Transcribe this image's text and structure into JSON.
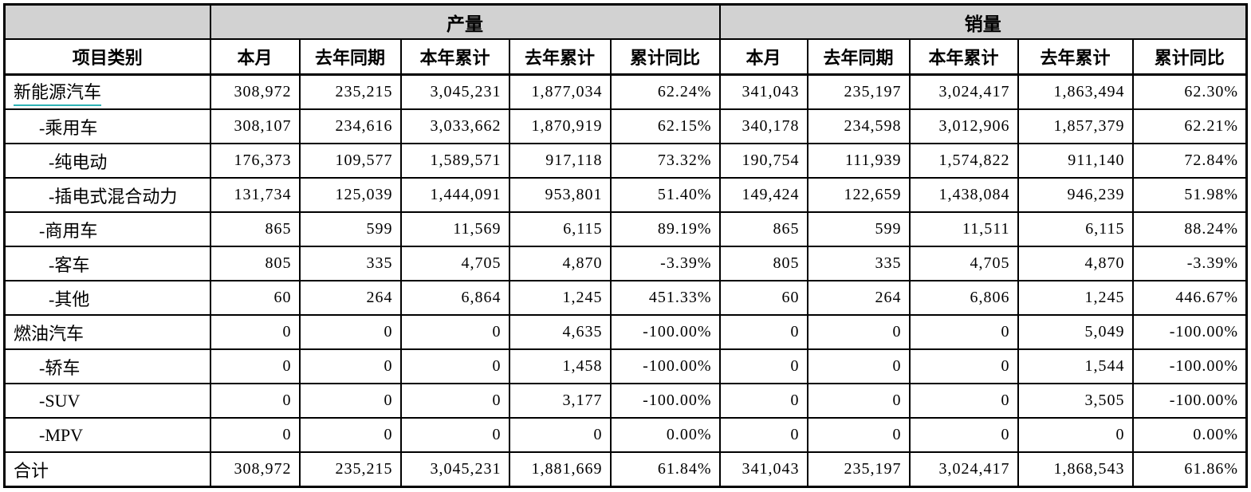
{
  "colors": {
    "header_bg": "#d2d2d2",
    "border": "#000000",
    "link_underline": "#2fb3b6",
    "text": "#000000"
  },
  "header": {
    "category_label": "项目类别",
    "groups": [
      {
        "label": "产量"
      },
      {
        "label": "销量"
      }
    ],
    "sub_columns": [
      "本月",
      "去年同期",
      "本年累计",
      "去年累计",
      "累计同比"
    ]
  },
  "rows": [
    {
      "label": "新能源汽车",
      "indent": 0,
      "link": true,
      "production": [
        "308,972",
        "235,215",
        "3,045,231",
        "1,877,034",
        "62.24%"
      ],
      "sales": [
        "341,043",
        "235,197",
        "3,024,417",
        "1,863,494",
        "62.30%"
      ]
    },
    {
      "label": "-乘用车",
      "indent": 1,
      "link": false,
      "production": [
        "308,107",
        "234,616",
        "3,033,662",
        "1,870,919",
        "62.15%"
      ],
      "sales": [
        "340,178",
        "234,598",
        "3,012,906",
        "1,857,379",
        "62.21%"
      ]
    },
    {
      "label": "-纯电动",
      "indent": 2,
      "link": false,
      "production": [
        "176,373",
        "109,577",
        "1,589,571",
        "917,118",
        "73.32%"
      ],
      "sales": [
        "190,754",
        "111,939",
        "1,574,822",
        "911,140",
        "72.84%"
      ]
    },
    {
      "label": "-插电式混合动力",
      "indent": 2,
      "link": false,
      "production": [
        "131,734",
        "125,039",
        "1,444,091",
        "953,801",
        "51.40%"
      ],
      "sales": [
        "149,424",
        "122,659",
        "1,438,084",
        "946,239",
        "51.98%"
      ]
    },
    {
      "label": "-商用车",
      "indent": 1,
      "link": false,
      "production": [
        "865",
        "599",
        "11,569",
        "6,115",
        "89.19%"
      ],
      "sales": [
        "865",
        "599",
        "11,511",
        "6,115",
        "88.24%"
      ]
    },
    {
      "label": "-客车",
      "indent": 2,
      "link": false,
      "production": [
        "805",
        "335",
        "4,705",
        "4,870",
        "-3.39%"
      ],
      "sales": [
        "805",
        "335",
        "4,705",
        "4,870",
        "-3.39%"
      ]
    },
    {
      "label": "-其他",
      "indent": 2,
      "link": false,
      "production": [
        "60",
        "264",
        "6,864",
        "1,245",
        "451.33%"
      ],
      "sales": [
        "60",
        "264",
        "6,806",
        "1,245",
        "446.67%"
      ]
    },
    {
      "label": "燃油汽车",
      "indent": 0,
      "link": false,
      "production": [
        "0",
        "0",
        "0",
        "4,635",
        "-100.00%"
      ],
      "sales": [
        "0",
        "0",
        "0",
        "5,049",
        "-100.00%"
      ]
    },
    {
      "label": "-轿车",
      "indent": 1,
      "link": false,
      "production": [
        "0",
        "0",
        "0",
        "1,458",
        "-100.00%"
      ],
      "sales": [
        "0",
        "0",
        "0",
        "1,544",
        "-100.00%"
      ]
    },
    {
      "label": "-SUV",
      "indent": 1,
      "link": false,
      "production": [
        "0",
        "0",
        "0",
        "3,177",
        "-100.00%"
      ],
      "sales": [
        "0",
        "0",
        "0",
        "3,505",
        "-100.00%"
      ]
    },
    {
      "label": "-MPV",
      "indent": 1,
      "link": false,
      "production": [
        "0",
        "0",
        "0",
        "0",
        "0.00%"
      ],
      "sales": [
        "0",
        "0",
        "0",
        "0",
        "0.00%"
      ]
    },
    {
      "label": "合计",
      "indent": 0,
      "link": false,
      "production": [
        "308,972",
        "235,215",
        "3,045,231",
        "1,881,669",
        "61.84%"
      ],
      "sales": [
        "341,043",
        "235,197",
        "3,024,417",
        "1,868,543",
        "61.86%"
      ]
    }
  ]
}
